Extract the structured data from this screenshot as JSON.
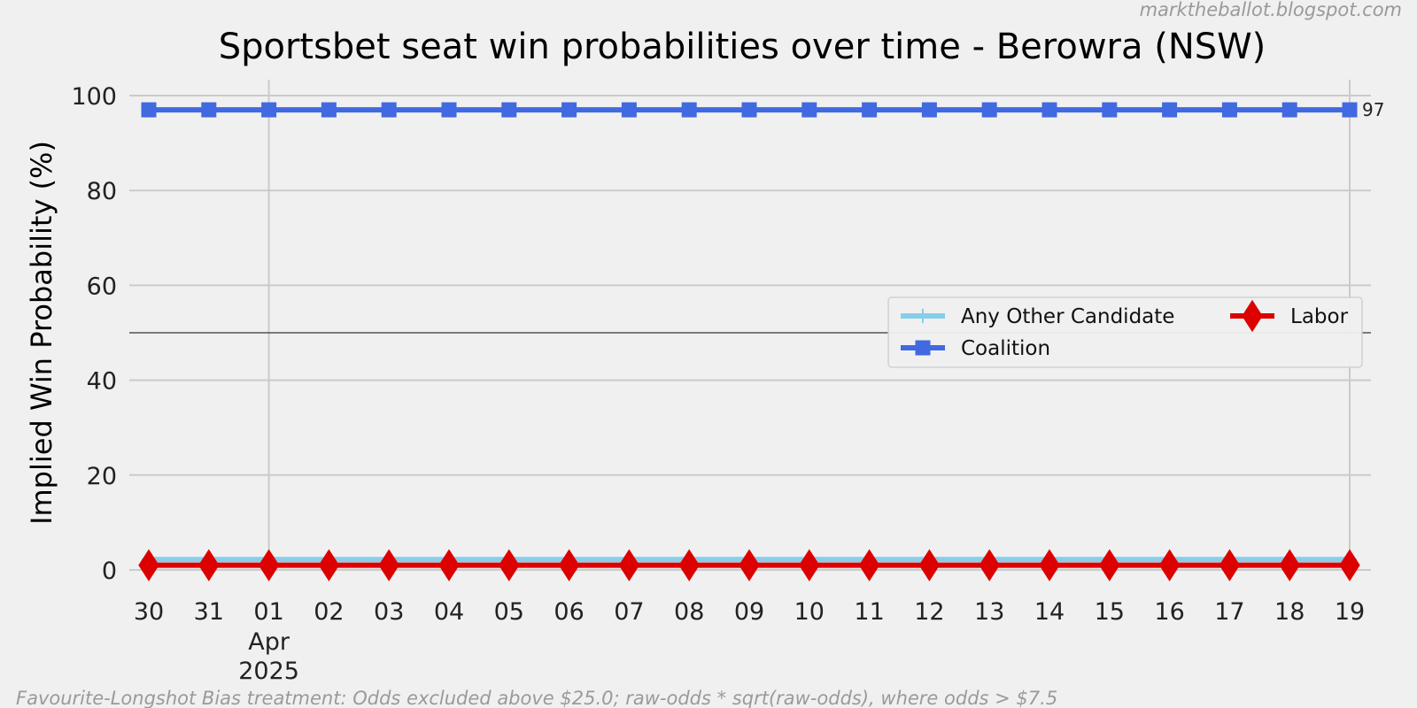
{
  "watermark": "marktheballot.blogspot.com",
  "footnote": "Favourite-Longshot Bias treatment: Odds excluded above $25.0; raw-odds * sqrt(raw-odds), where odds > $7.5",
  "colors": {
    "background": "#f0f0f0",
    "grid": "#cbcbcb",
    "any_other": "#87ceeb",
    "coalition": "#4169e1",
    "labor": "#dd0000",
    "reference_line": "#333333"
  },
  "chart_data": {
    "type": "line",
    "title": "Sportsbet seat win probabilities over time - Berowra (NSW)",
    "xlabel": "",
    "ylabel": "Implied Win Probability (%)",
    "ylim": [
      0,
      100
    ],
    "yticks": [
      0,
      20,
      40,
      60,
      80,
      100
    ],
    "x": [
      "2025-03-30",
      "2025-03-31",
      "2025-04-01",
      "2025-04-02",
      "2025-04-03",
      "2025-04-04",
      "2025-04-05",
      "2025-04-06",
      "2025-04-07",
      "2025-04-08",
      "2025-04-09",
      "2025-04-10",
      "2025-04-11",
      "2025-04-12",
      "2025-04-13",
      "2025-04-14",
      "2025-04-15",
      "2025-04-16",
      "2025-04-17",
      "2025-04-18",
      "2025-04-19"
    ],
    "x_tick_labels": [
      "30",
      "31",
      "01",
      "02",
      "03",
      "04",
      "05",
      "06",
      "07",
      "08",
      "09",
      "10",
      "11",
      "12",
      "13",
      "14",
      "15",
      "16",
      "17",
      "18",
      "19"
    ],
    "x_tick_sublabel": [
      "Apr",
      "2025"
    ],
    "x_tick_sublabel_at": "01",
    "x_major_gridlines_at": [
      "2025-04-01",
      "2025-04-19"
    ],
    "reference_line_y": 50,
    "grid": true,
    "legend_placement": "center-right",
    "series": [
      {
        "name": "Any Other Candidate",
        "marker": "plus",
        "color": "#87ceeb",
        "values": [
          2.2,
          2.2,
          2.2,
          2.2,
          2.2,
          2.2,
          2.2,
          2.2,
          2.2,
          2.2,
          2.2,
          2.2,
          2.2,
          2.2,
          2.2,
          2.2,
          2.2,
          2.2,
          2.2,
          2.2,
          2.2
        ]
      },
      {
        "name": "Coalition",
        "marker": "square",
        "color": "#4169e1",
        "values": [
          97,
          97,
          97,
          97,
          97,
          97,
          97,
          97,
          97,
          97,
          97,
          97,
          97,
          97,
          97,
          97,
          97,
          97,
          97,
          97,
          97
        ],
        "end_label": "97"
      },
      {
        "name": "Labor",
        "marker": "diamond",
        "color": "#dd0000",
        "values": [
          1,
          1,
          1,
          1,
          1,
          1,
          1,
          1,
          1,
          1,
          1,
          1,
          1,
          1,
          1,
          1,
          1,
          1,
          1,
          1,
          1
        ]
      }
    ],
    "legend_order": [
      "Any Other Candidate",
      "Labor",
      "Coalition"
    ]
  }
}
